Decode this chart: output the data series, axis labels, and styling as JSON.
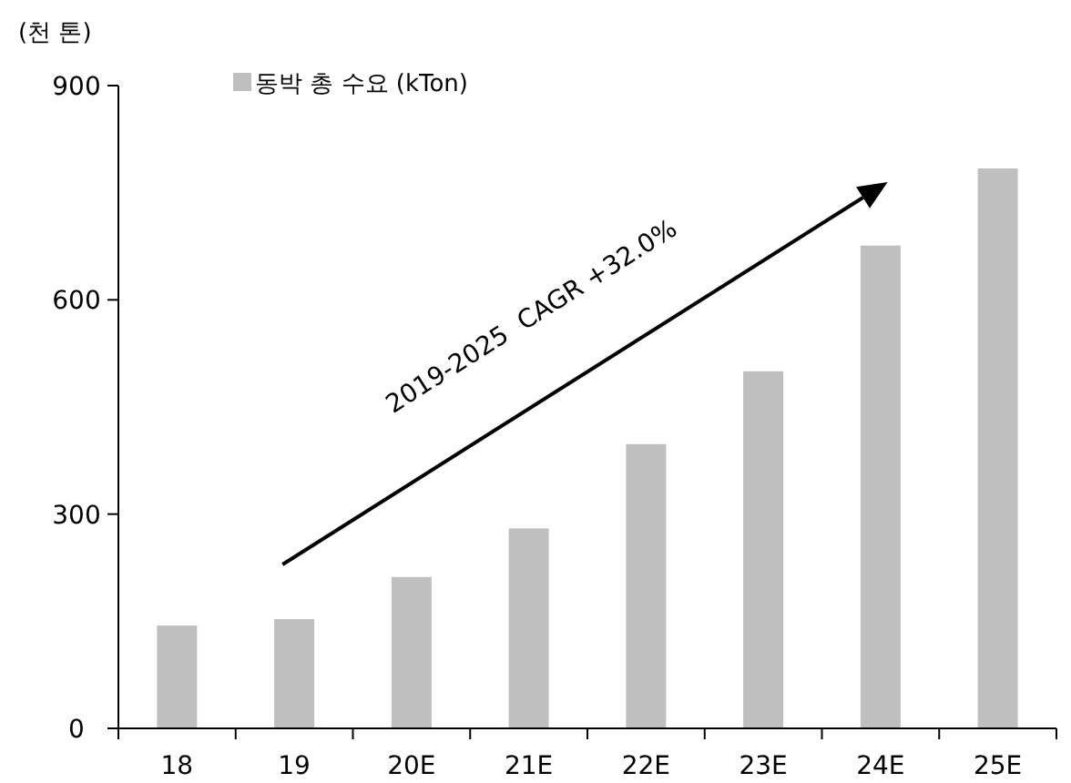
{
  "chart_data": {
    "type": "bar",
    "ylabel": "(천 톤)",
    "categories": [
      "18",
      "19",
      "20E",
      "21E",
      "22E",
      "23E",
      "24E",
      "25E"
    ],
    "series": [
      {
        "name": "동박 총 수요 (kTon)",
        "color": "#bfbfbf",
        "values": [
          144,
          153,
          212,
          280,
          398,
          500,
          676,
          784
        ]
      }
    ],
    "ylim": [
      0,
      900
    ],
    "yticks": [
      0,
      300,
      600,
      900
    ],
    "grid": false,
    "legend": "top left",
    "annotations": [
      "2019-2025  CAGR +32.0%"
    ]
  }
}
